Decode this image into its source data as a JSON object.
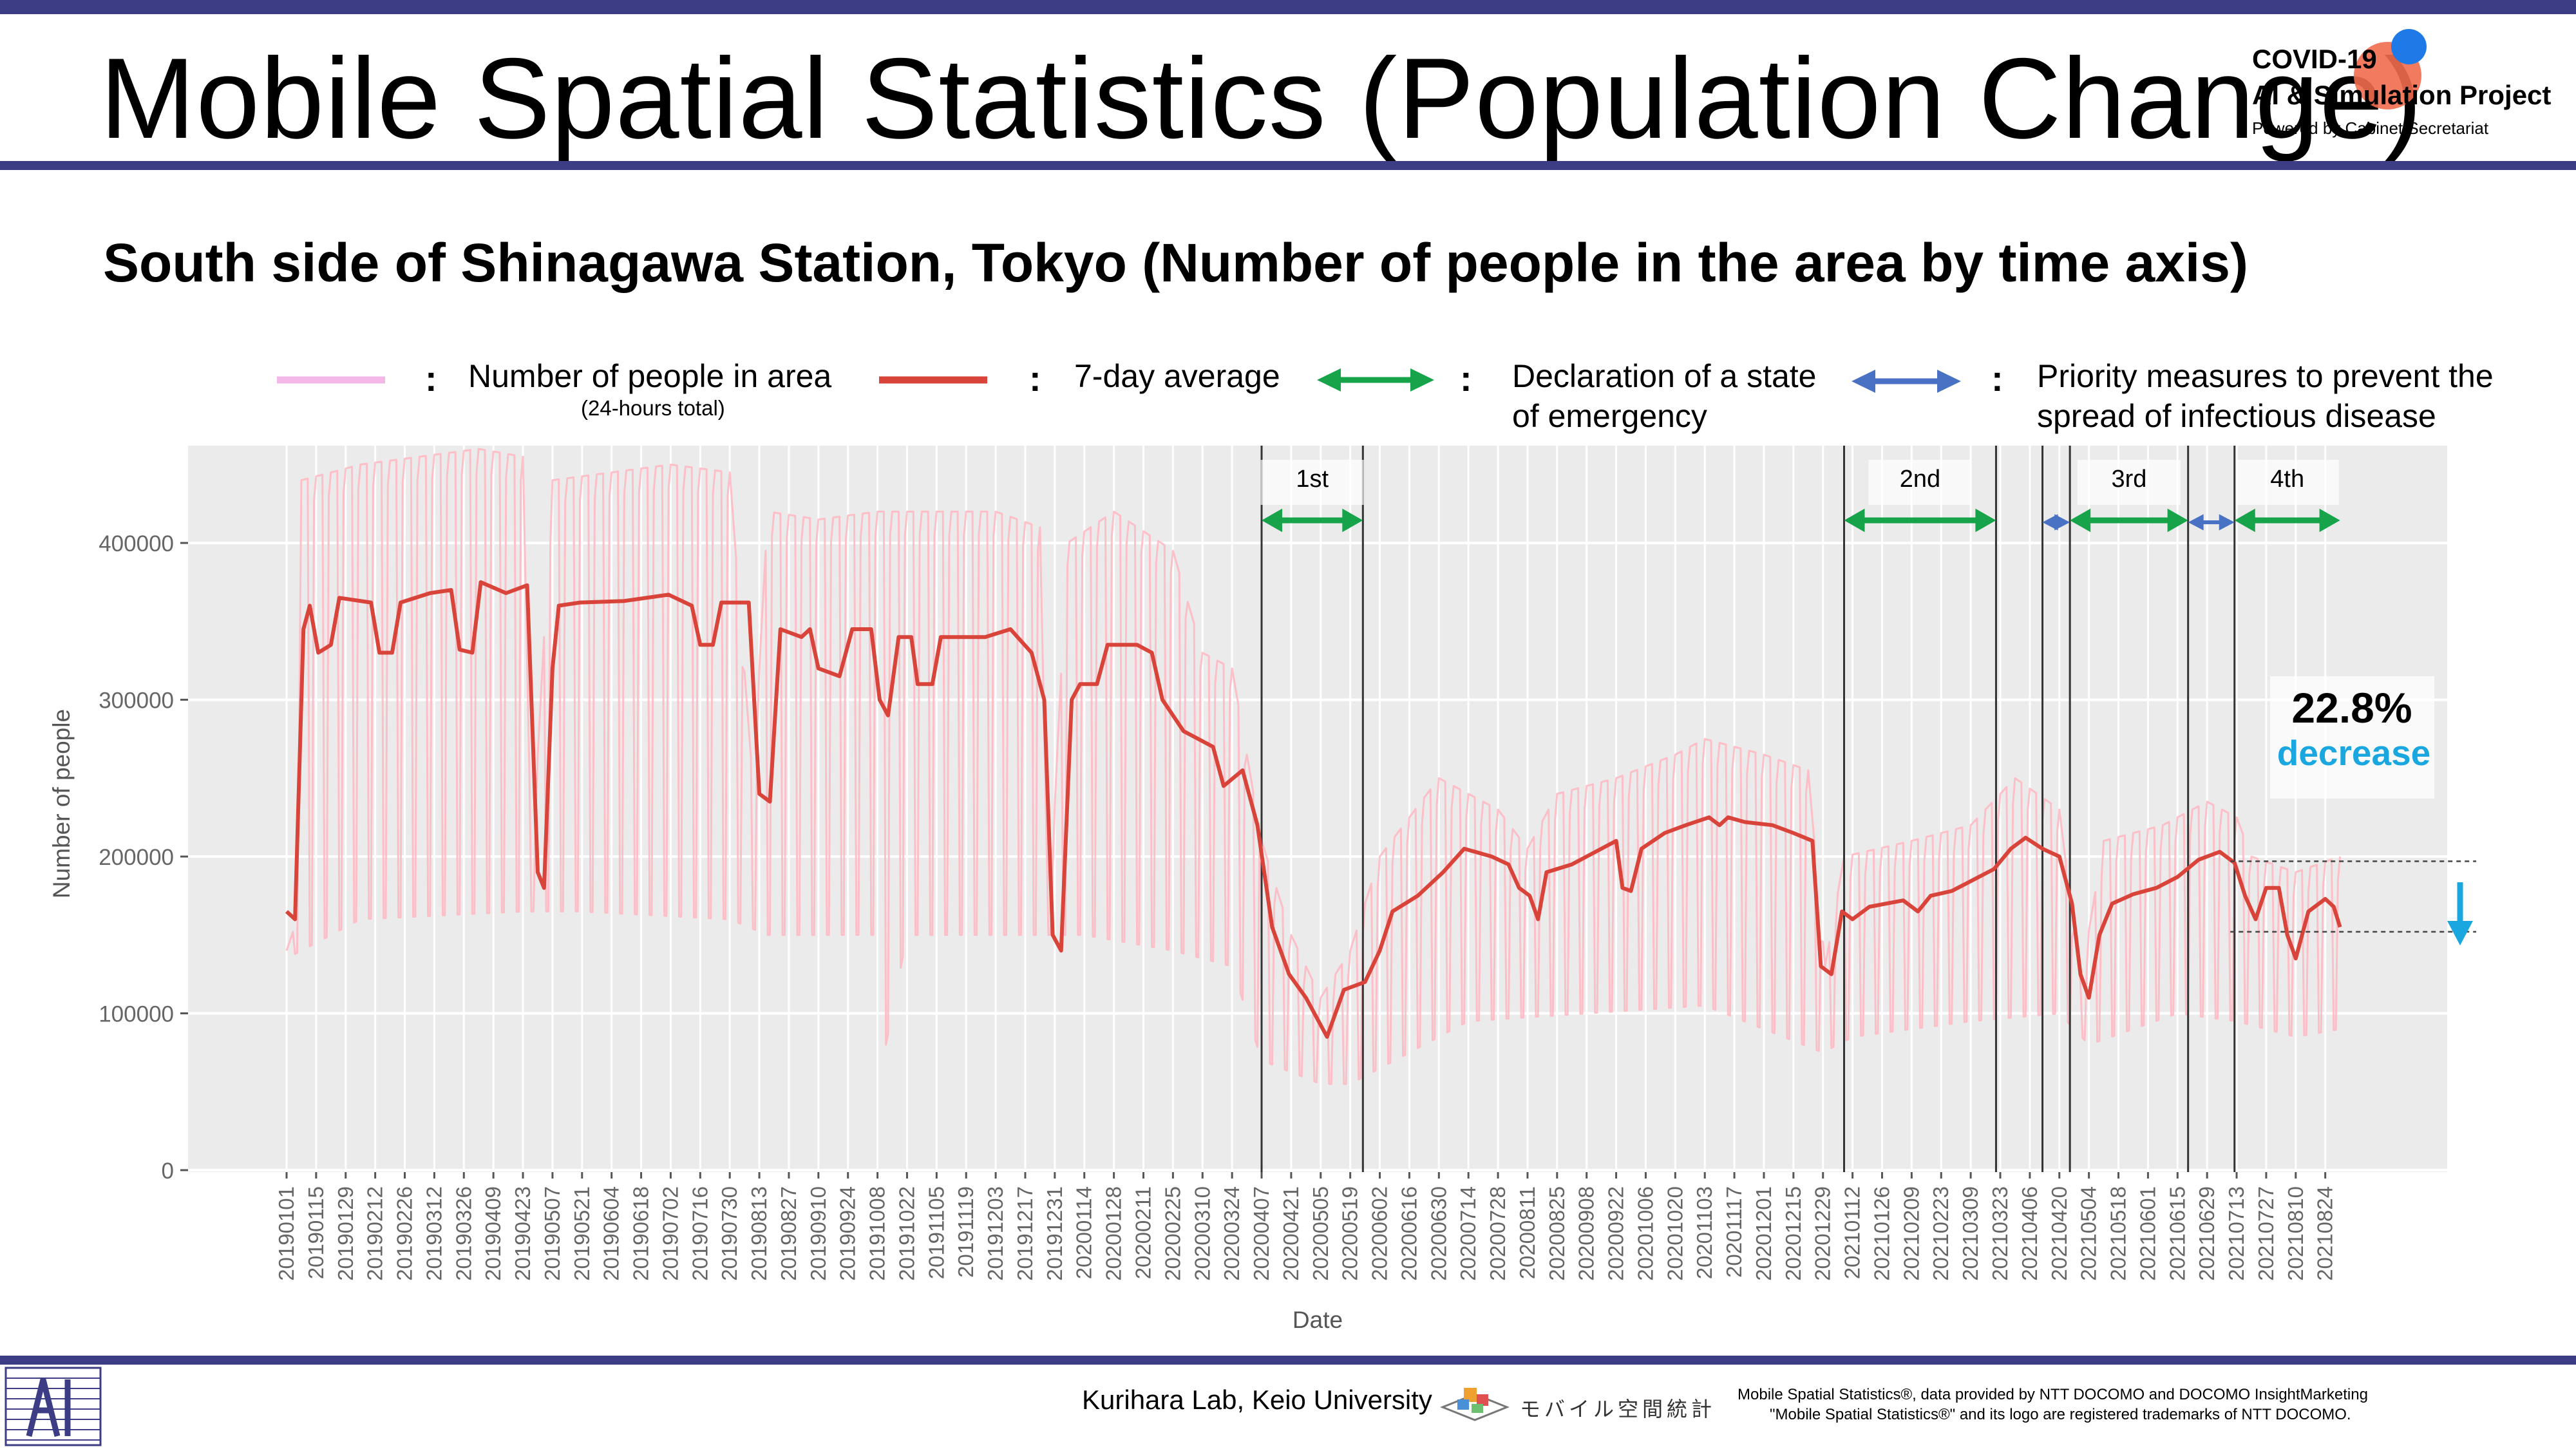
{
  "title": "Mobile Spatial Statistics (Population Change)",
  "subtitle": "South side of Shinagawa Station, Tokyo (Number of people in the area by time axis)",
  "logo": {
    "line1": "COVID-19",
    "line2": "AI & Simulation Project",
    "line3": "Powered by Cabinet Secretariat"
  },
  "legend": {
    "separator": ":",
    "daily_label": "Number of people in area",
    "daily_sublabel": "(24-hours total)",
    "avg_label": "7-day average",
    "emergency_label_1": "Declaration of a state",
    "emergency_label_2": "of emergency",
    "priority_label_1": "Priority measures to prevent the",
    "priority_label_2": "spread of infectious disease"
  },
  "annotation": {
    "percent": "22.8%",
    "word": "decrease"
  },
  "footer": {
    "lab": "Kurihara Lab, Keio University",
    "logo_text": "モバイル空間統計",
    "note1": "Mobile Spatial Statistics®, data provided by NTT DOCOMO and DOCOMO InsightMarketing",
    "note2": "\"Mobile Spatial Statistics®\" and its logo are registered trademarks of NTT DOCOMO."
  },
  "colors": {
    "daily": "#ffb6c1",
    "average": "#d9443a",
    "emergency": "#16a34a",
    "priority": "#4a72c4",
    "highlight": "#1aa7e0",
    "panel": "#ebebeb",
    "header_bar": "#3d3d86"
  },
  "chart_data": {
    "type": "line",
    "title": "",
    "xlabel": "Date",
    "ylabel": "Number of people",
    "ylim": [
      0,
      460000
    ],
    "yticks": [
      0,
      100000,
      200000,
      300000,
      400000
    ],
    "ytick_labels": [
      "0",
      "100000",
      "200000",
      "300000",
      "400000"
    ],
    "xlim": [
      "2019-01-01",
      "2021-09-05"
    ],
    "xtick_labels": [
      "20190101",
      "20190115",
      "20190129",
      "20190212",
      "20190226",
      "20190312",
      "20190326",
      "20190409",
      "20190423",
      "20190507",
      "20190521",
      "20190604",
      "20190618",
      "20190702",
      "20190716",
      "20190730",
      "20190813",
      "20190827",
      "20190910",
      "20190924",
      "20191008",
      "20191022",
      "20191105",
      "20191119",
      "20191203",
      "20191217",
      "20191231",
      "20200114",
      "20200128",
      "20200211",
      "20200225",
      "20200310",
      "20200324",
      "20200407",
      "20200421",
      "20200505",
      "20200519",
      "20200602",
      "20200616",
      "20200630",
      "20200714",
      "20200728",
      "20200811",
      "20200825",
      "20200908",
      "20200922",
      "20201006",
      "20201020",
      "20201103",
      "20201117",
      "20201201",
      "20201215",
      "20201229",
      "20210112",
      "20210126",
      "20210209",
      "20210223",
      "20210309",
      "20210323",
      "20210406",
      "20210420",
      "20210504",
      "20210518",
      "20210601",
      "20210615",
      "20210629",
      "20210713",
      "20210727",
      "20210810",
      "20210824"
    ],
    "grid": true,
    "series": [
      {
        "name": "Number of people in area",
        "style": "weekly-oscillating",
        "weekday_envelope": [
          [
            "2019-01-01",
            140000
          ],
          [
            "2019-01-06",
            160000
          ],
          [
            "2019-01-08",
            440000
          ],
          [
            "2019-02-05",
            450000
          ],
          [
            "2019-03-05",
            455000
          ],
          [
            "2019-04-02",
            460000
          ],
          [
            "2019-04-23",
            455000
          ],
          [
            "2019-04-27",
            190000
          ],
          [
            "2019-05-07",
            440000
          ],
          [
            "2019-06-04",
            445000
          ],
          [
            "2019-07-02",
            450000
          ],
          [
            "2019-07-30",
            445000
          ],
          [
            "2019-08-10",
            245000
          ],
          [
            "2019-08-17",
            420000
          ],
          [
            "2019-09-10",
            415000
          ],
          [
            "2019-10-08",
            420000
          ],
          [
            "2019-11-05",
            420000
          ],
          [
            "2019-12-03",
            420000
          ],
          [
            "2019-12-24",
            410000
          ],
          [
            "2019-12-28",
            150000
          ],
          [
            "2020-01-06",
            400000
          ],
          [
            "2020-01-28",
            420000
          ],
          [
            "2020-02-25",
            395000
          ],
          [
            "2020-03-10",
            330000
          ],
          [
            "2020-03-24",
            320000
          ],
          [
            "2020-04-07",
            210000
          ],
          [
            "2020-04-21",
            150000
          ],
          [
            "2020-05-05",
            110000
          ],
          [
            "2020-05-19",
            140000
          ],
          [
            "2020-06-02",
            200000
          ],
          [
            "2020-06-30",
            250000
          ],
          [
            "2020-07-28",
            230000
          ],
          [
            "2020-08-11",
            205000
          ],
          [
            "2020-08-25",
            240000
          ],
          [
            "2020-09-22",
            250000
          ],
          [
            "2020-10-20",
            265000
          ],
          [
            "2020-11-03",
            275000
          ],
          [
            "2020-12-01",
            265000
          ],
          [
            "2020-12-22",
            255000
          ],
          [
            "2020-12-30",
            130000
          ],
          [
            "2021-01-08",
            200000
          ],
          [
            "2021-02-09",
            210000
          ],
          [
            "2021-03-09",
            220000
          ],
          [
            "2021-03-30",
            250000
          ],
          [
            "2021-04-20",
            230000
          ],
          [
            "2021-04-30",
            120000
          ],
          [
            "2021-05-11",
            210000
          ],
          [
            "2021-06-08",
            220000
          ],
          [
            "2021-06-29",
            235000
          ],
          [
            "2021-07-13",
            225000
          ],
          [
            "2021-07-20",
            200000
          ],
          [
            "2021-08-10",
            190000
          ],
          [
            "2021-08-31",
            200000
          ]
        ],
        "weekend_envelope": [
          [
            "2019-01-01",
            135000
          ],
          [
            "2019-02-05",
            160000
          ],
          [
            "2019-04-23",
            165000
          ],
          [
            "2019-05-21",
            165000
          ],
          [
            "2019-07-30",
            160000
          ],
          [
            "2019-08-17",
            150000
          ],
          [
            "2019-10-08",
            150000
          ],
          [
            "2019-10-12",
            80000
          ],
          [
            "2019-10-22",
            150000
          ],
          [
            "2019-12-17",
            150000
          ],
          [
            "2020-01-14",
            150000
          ],
          [
            "2020-02-25",
            140000
          ],
          [
            "2020-03-24",
            130000
          ],
          [
            "2020-04-07",
            70000
          ],
          [
            "2020-05-05",
            55000
          ],
          [
            "2020-05-19",
            55000
          ],
          [
            "2020-06-02",
            65000
          ],
          [
            "2020-07-14",
            95000
          ],
          [
            "2020-09-08",
            100000
          ],
          [
            "2020-11-03",
            105000
          ],
          [
            "2020-12-29",
            75000
          ],
          [
            "2021-01-12",
            85000
          ],
          [
            "2021-03-09",
            95000
          ],
          [
            "2021-04-20",
            100000
          ],
          [
            "2021-05-04",
            80000
          ],
          [
            "2021-06-15",
            100000
          ],
          [
            "2021-07-13",
            95000
          ],
          [
            "2021-08-10",
            85000
          ],
          [
            "2021-08-31",
            90000
          ]
        ]
      },
      {
        "name": "7-day average",
        "points": [
          [
            "2019-01-01",
            165000
          ],
          [
            "2019-01-05",
            160000
          ],
          [
            "2019-01-09",
            345000
          ],
          [
            "2019-01-12",
            360000
          ],
          [
            "2019-01-16",
            330000
          ],
          [
            "2019-01-22",
            335000
          ],
          [
            "2019-01-26",
            365000
          ],
          [
            "2019-02-10",
            362000
          ],
          [
            "2019-02-14",
            330000
          ],
          [
            "2019-02-20",
            330000
          ],
          [
            "2019-02-24",
            362000
          ],
          [
            "2019-03-10",
            368000
          ],
          [
            "2019-03-20",
            370000
          ],
          [
            "2019-03-24",
            332000
          ],
          [
            "2019-03-30",
            330000
          ],
          [
            "2019-04-03",
            375000
          ],
          [
            "2019-04-15",
            368000
          ],
          [
            "2019-04-25",
            373000
          ],
          [
            "2019-04-30",
            190000
          ],
          [
            "2019-05-03",
            180000
          ],
          [
            "2019-05-07",
            320000
          ],
          [
            "2019-05-10",
            360000
          ],
          [
            "2019-05-20",
            362000
          ],
          [
            "2019-06-10",
            363000
          ],
          [
            "2019-07-01",
            367000
          ],
          [
            "2019-07-12",
            360000
          ],
          [
            "2019-07-16",
            335000
          ],
          [
            "2019-07-22",
            335000
          ],
          [
            "2019-07-26",
            362000
          ],
          [
            "2019-08-08",
            362000
          ],
          [
            "2019-08-13",
            240000
          ],
          [
            "2019-08-18",
            235000
          ],
          [
            "2019-08-23",
            345000
          ],
          [
            "2019-09-02",
            340000
          ],
          [
            "2019-09-06",
            345000
          ],
          [
            "2019-09-10",
            320000
          ],
          [
            "2019-09-20",
            315000
          ],
          [
            "2019-09-26",
            345000
          ],
          [
            "2019-10-05",
            345000
          ],
          [
            "2019-10-09",
            300000
          ],
          [
            "2019-10-13",
            290000
          ],
          [
            "2019-10-18",
            340000
          ],
          [
            "2019-10-24",
            340000
          ],
          [
            "2019-10-27",
            310000
          ],
          [
            "2019-11-03",
            310000
          ],
          [
            "2019-11-07",
            340000
          ],
          [
            "2019-11-28",
            340000
          ],
          [
            "2019-12-10",
            345000
          ],
          [
            "2019-12-20",
            330000
          ],
          [
            "2019-12-26",
            300000
          ],
          [
            "2019-12-30",
            150000
          ],
          [
            "2020-01-03",
            140000
          ],
          [
            "2020-01-08",
            300000
          ],
          [
            "2020-01-12",
            310000
          ],
          [
            "2020-01-20",
            310000
          ],
          [
            "2020-01-25",
            335000
          ],
          [
            "2020-02-08",
            335000
          ],
          [
            "2020-02-15",
            330000
          ],
          [
            "2020-02-20",
            300000
          ],
          [
            "2020-03-01",
            280000
          ],
          [
            "2020-03-15",
            270000
          ],
          [
            "2020-03-20",
            245000
          ],
          [
            "2020-03-29",
            255000
          ],
          [
            "2020-04-05",
            220000
          ],
          [
            "2020-04-12",
            155000
          ],
          [
            "2020-04-20",
            125000
          ],
          [
            "2020-04-28",
            110000
          ],
          [
            "2020-05-04",
            95000
          ],
          [
            "2020-05-08",
            85000
          ],
          [
            "2020-05-12",
            100000
          ],
          [
            "2020-05-16",
            115000
          ],
          [
            "2020-05-26",
            120000
          ],
          [
            "2020-06-02",
            140000
          ],
          [
            "2020-06-08",
            165000
          ],
          [
            "2020-06-20",
            175000
          ],
          [
            "2020-07-02",
            190000
          ],
          [
            "2020-07-12",
            205000
          ],
          [
            "2020-07-25",
            200000
          ],
          [
            "2020-08-02",
            195000
          ],
          [
            "2020-08-07",
            180000
          ],
          [
            "2020-08-12",
            175000
          ],
          [
            "2020-08-16",
            160000
          ],
          [
            "2020-08-20",
            190000
          ],
          [
            "2020-09-01",
            195000
          ],
          [
            "2020-09-15",
            205000
          ],
          [
            "2020-09-22",
            210000
          ],
          [
            "2020-09-25",
            180000
          ],
          [
            "2020-09-29",
            178000
          ],
          [
            "2020-10-04",
            205000
          ],
          [
            "2020-10-15",
            215000
          ],
          [
            "2020-10-25",
            220000
          ],
          [
            "2020-11-05",
            225000
          ],
          [
            "2020-11-10",
            220000
          ],
          [
            "2020-11-14",
            225000
          ],
          [
            "2020-11-22",
            222000
          ],
          [
            "2020-12-05",
            220000
          ],
          [
            "2020-12-15",
            215000
          ],
          [
            "2020-12-24",
            210000
          ],
          [
            "2020-12-28",
            130000
          ],
          [
            "2021-01-02",
            125000
          ],
          [
            "2021-01-07",
            165000
          ],
          [
            "2021-01-12",
            160000
          ],
          [
            "2021-01-20",
            168000
          ],
          [
            "2021-02-05",
            172000
          ],
          [
            "2021-02-12",
            165000
          ],
          [
            "2021-02-18",
            175000
          ],
          [
            "2021-02-28",
            178000
          ],
          [
            "2021-03-10",
            185000
          ],
          [
            "2021-03-20",
            192000
          ],
          [
            "2021-03-28",
            205000
          ],
          [
            "2021-04-04",
            212000
          ],
          [
            "2021-04-12",
            205000
          ],
          [
            "2021-04-20",
            200000
          ],
          [
            "2021-04-26",
            170000
          ],
          [
            "2021-04-30",
            125000
          ],
          [
            "2021-05-04",
            110000
          ],
          [
            "2021-05-09",
            150000
          ],
          [
            "2021-05-15",
            170000
          ],
          [
            "2021-05-25",
            176000
          ],
          [
            "2021-06-05",
            180000
          ],
          [
            "2021-06-15",
            187000
          ],
          [
            "2021-06-25",
            198000
          ],
          [
            "2021-07-05",
            203000
          ],
          [
            "2021-07-12",
            196000
          ],
          [
            "2021-07-17",
            175000
          ],
          [
            "2021-07-22",
            160000
          ],
          [
            "2021-07-27",
            180000
          ],
          [
            "2021-08-02",
            180000
          ],
          [
            "2021-08-06",
            150000
          ],
          [
            "2021-08-10",
            135000
          ],
          [
            "2021-08-16",
            165000
          ],
          [
            "2021-08-24",
            173000
          ],
          [
            "2021-08-28",
            168000
          ],
          [
            "2021-08-31",
            155000
          ]
        ]
      }
    ],
    "period_dividers": [
      "2020-04-07",
      "2020-05-25",
      "2021-01-08",
      "2021-03-21",
      "2021-04-12",
      "2021-04-25",
      "2021-06-20",
      "2021-07-12"
    ],
    "measure_periods": [
      {
        "label": "1st",
        "kind": "emergency",
        "start": "2020-04-07",
        "end": "2020-05-25"
      },
      {
        "label": "2nd",
        "kind": "emergency",
        "start": "2021-01-08",
        "end": "2021-03-21"
      },
      {
        "label": "",
        "kind": "priority",
        "start": "2021-04-12",
        "end": "2021-04-25"
      },
      {
        "label": "3rd",
        "kind": "emergency",
        "start": "2021-04-25",
        "end": "2021-06-20"
      },
      {
        "label": "",
        "kind": "priority",
        "start": "2021-06-20",
        "end": "2021-07-12"
      },
      {
        "label": "4th",
        "kind": "emergency",
        "start": "2021-07-12",
        "end": "2021-08-31"
      }
    ],
    "reference_levels": [
      197000,
      152000
    ]
  }
}
